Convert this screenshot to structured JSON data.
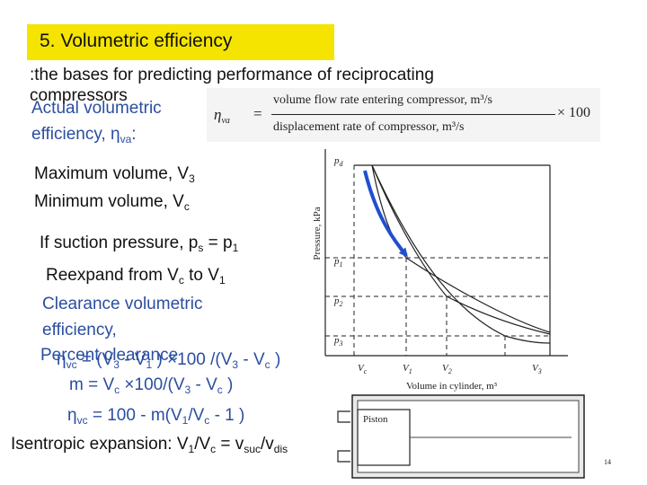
{
  "title": "5. Volumetric efficiency",
  "intro": {
    "line1": ":the bases for predicting performance of reciprocating",
    "line2": "compressors"
  },
  "actual_vol": {
    "line1": "Actual volumetric",
    "line2_prefix": "efficiency, η",
    "line2_sub": "va",
    "line2_suffix": ":"
  },
  "equation": {
    "eta": "η",
    "eta_sub": "va",
    "equals": "=",
    "numerator": "volume flow rate entering compressor, m³/s",
    "denominator": "displacement rate of compressor, m³/s",
    "times": "× 100"
  },
  "max_vol": {
    "prefix": "Maximum volume, V",
    "sub": "3"
  },
  "min_vol": {
    "prefix": "Minimum volume, V",
    "sub": "c"
  },
  "suction": {
    "a": "If suction pressure, p",
    "b": "s",
    "c": " = p",
    "d": "1"
  },
  "reexpand": {
    "a": "Reexpand from V",
    "b": "c",
    "c": "  to V",
    "d": "1"
  },
  "clearance": {
    "line1": "Clearance volumetric",
    "line2": "efficiency,"
  },
  "percent_clearance": "Percent clearance",
  "eta_vc_formula": {
    "a": "η",
    "b": "vc",
    "c": " = (V",
    "d": "3",
    "e": " - V",
    "f": "1",
    "g": " ) ×100 /(V",
    "h": "3",
    "i": " - V",
    "j": "c",
    "k": " )"
  },
  "m_formula": {
    "a": "m = V",
    "b": "c",
    "c": " ×100/(V",
    "d": "3",
    "e": " - V",
    "f": "c",
    "g": " )"
  },
  "eta_vc2": {
    "a": "η",
    "b": "vc",
    "c": " = 100 - m(V",
    "d": "1",
    "e": "/V",
    "f": "c",
    "g": " - 1 )"
  },
  "isentropic": {
    "a": "Isentropic expansion: V",
    "b": "1",
    "c": "/V",
    "d": "c",
    "e": " = v",
    "f": "suc",
    "g": "/v",
    "h": "dis"
  },
  "chart": {
    "ylabel": "Pressure, kPa",
    "xlabel": "Volume in cylinder, m³",
    "y_ticks": [
      "p",
      "p",
      "p",
      "p"
    ],
    "y_subs": [
      "d",
      "1",
      "2",
      "3"
    ],
    "x_ticks": [
      "V",
      "V",
      "V",
      "V"
    ],
    "x_subs": [
      "c",
      "1",
      "2",
      "3"
    ],
    "piston": "Piston",
    "arrow_color": "#1f4fd0"
  },
  "page_number": "14"
}
